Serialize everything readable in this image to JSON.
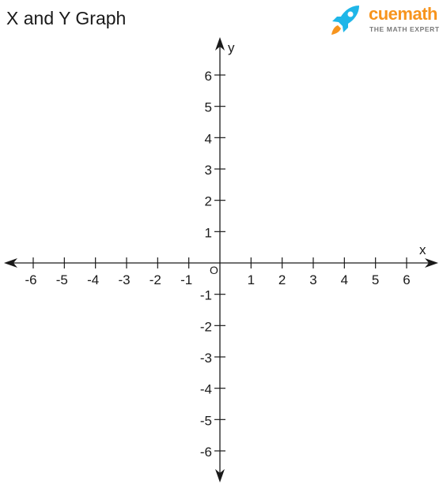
{
  "title": "X and Y Graph",
  "brand": {
    "name": "cuemath",
    "tagline": "THE MATH EXPERT",
    "icon": "rocket-icon",
    "color_primary": "#f7941d",
    "color_accent": "#1fb6e8"
  },
  "axes": {
    "x_label": "x",
    "y_label": "y",
    "origin_label": "O",
    "x_ticks": [
      -6,
      -5,
      -4,
      -3,
      -2,
      -1,
      1,
      2,
      3,
      4,
      5,
      6
    ],
    "y_ticks": [
      6,
      5,
      4,
      3,
      2,
      1,
      -1,
      -2,
      -3,
      -4,
      -5,
      -6
    ],
    "range": [
      -6,
      6
    ],
    "color": "#1a1a1a"
  }
}
